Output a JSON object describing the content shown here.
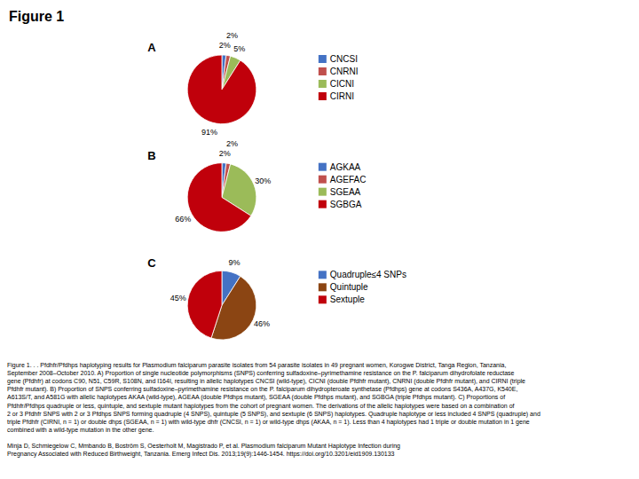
{
  "title": "Figure 1",
  "annotations": [
    "Figure 1. . .  Pfdhfr/Pfdhps haplotyping results for Plasmodium falciparum parasite isolates from 54 parasite isolates in 49 pregnant women, Korogwe District, Tanga Region, Tanzania,",
    "September 2008–October 2010. A) Proportion of single nucleotide polymorphisms (SNPS) conferring sulfadoxine–pyrimethamine resistance on the P. falciparum dihydrofolate reductase",
    "gene (Pfdhfr) at codons C90, N51, C59R, S108N, and I164I, resulting in allelic haplotypes CNCSI (wild-type), CICNI (double Pfdhfr mutant), CNRNI (double Pfdhfr mutant), and CIRNI (triple",
    "Pfdhfr mutant). B) Proportion of SNPS conferring sulfadoxine–pyrimethamine resistance on the P. falciparum dihydropteroate synthetase (Pfdhps) gene at codons S436A, A437G, K540E,",
    "A613S/T, and A581G with allelic haplotypes AKAA (wild-type), AGEAA (double Pfdhps mutant), SGEAA (double Pfdhps mutant), and SGBGA (triple Pfdhps mutant). C) Proportions of",
    "Pfdhfr/Pfdhps quadruple or less, quintuple, and sextuple mutant haplotypes from the cohort of pregnant women. The derivations of the allelic haplotypes were based on a combination of",
    "2 or 3 Pfdhfr SNPS with 2 or 3 Pfdhps SNPS forming quadruple (4 SNPS), quintuple (5 SNPS), and sextuple (6 SNPS) haplotypes. Quadruple haplotype or less included 4 SNPS (quadruple) and",
    "triple Pfdhfr (CIRNI, n = 1) or double dhps (SGEAA, n = 1) with wild-type dhfr (CNCSI, n = 1) or wild-type dhps (AKAA, n = 1). Less than 4 haplotypes had 1 triple or double mutation in 1 gene",
    "combined with a wild-type mutation in the other gene.",
    "Minja D, Schmiegelow C, Mmbando B, Boström S, Oesterholt M, Magistrado P, et al. Plasmodium falciparum Mutant Haplotype Infection during",
    "Pregnancy Associated with Reduced Birthweight, Tanzania. Emerg Infect Dis. 2013;19(9):1446-1454. https://doi.org/10.3201/eid1909.130133"
  ],
  "chart_data": [
    {
      "type": "pie",
      "title": "A",
      "categories": [
        "CNCSI",
        "CNRNI",
        "CICNI",
        "CIRNI"
      ],
      "values": [
        2,
        2,
        5,
        91
      ],
      "value_labels": [
        "2%",
        "2%",
        "5%",
        "91%"
      ],
      "colors": [
        "#4472C4",
        "#C0504D",
        "#9BBB59",
        "#C0000B"
      ],
      "data_labels": true,
      "legend": "right"
    },
    {
      "type": "pie",
      "title": "B",
      "categories": [
        "AGKAA",
        "AGEFAC",
        "SGEAA",
        "SGBGA"
      ],
      "values": [
        2,
        2,
        30,
        66
      ],
      "value_labels": [
        "2%",
        "2%",
        "30%",
        "66%"
      ],
      "colors": [
        "#4472C4",
        "#C0504D",
        "#9BBB59",
        "#C0000B"
      ],
      "data_labels": true,
      "legend": "right"
    },
    {
      "type": "pie",
      "title": "C",
      "categories": [
        "Quadruple≤4 SNPs",
        "Quintuple",
        "Sextuple"
      ],
      "values": [
        9,
        46,
        45
      ],
      "value_labels": [
        "9%",
        "46%",
        "45%"
      ],
      "colors": [
        "#4472C4",
        "#8B4513",
        "#C0000B"
      ],
      "data_labels": true,
      "legend": "right"
    }
  ]
}
